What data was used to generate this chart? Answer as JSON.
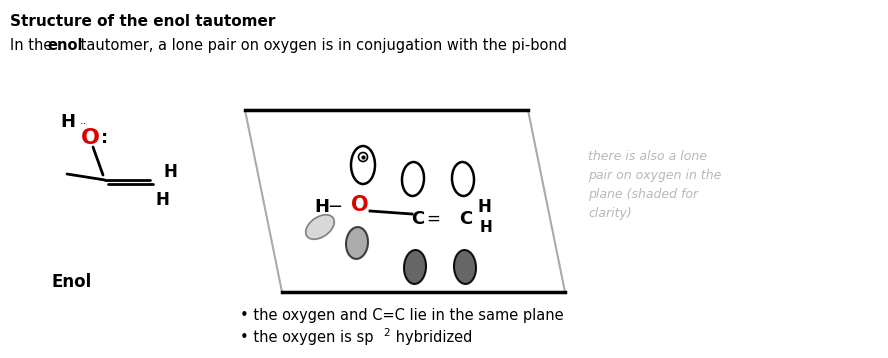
{
  "title": "Structure of the enol tautomer",
  "subtitle_pre": "In the ",
  "subtitle_bold": "enol",
  "subtitle_post": " tautomer, a lone pair on oxygen is in conjugation with the pi-bond",
  "enol_label": "Enol",
  "bullet1": "• the oxygen and C=C lie in the same plane",
  "bullet2_pre": "• the oxygen is sp",
  "bullet2_super": "2",
  "bullet2_post": " hybridized",
  "right_text": "there is also a lone\npair on oxygen in the\nplane (shaded for\nclarity)",
  "bg_color": "#ffffff",
  "title_color": "#000000",
  "oxygen_color": "#dd0000",
  "text_color": "#000000",
  "gray_text_color": "#b8b8b8",
  "bond_color": "#000000"
}
